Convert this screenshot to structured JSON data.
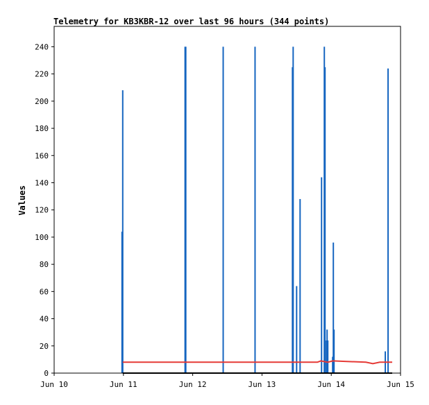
{
  "chart_data": {
    "type": "bar",
    "title": "Telemetry for KB3KBR-12 over last 96 hours (344 points)",
    "ylabel": "Values",
    "xlabel": "",
    "ylim": [
      0,
      255
    ],
    "xlim": [
      10.0,
      15.0
    ],
    "y_ticks": [
      0,
      20,
      40,
      60,
      80,
      100,
      120,
      140,
      160,
      180,
      200,
      220,
      240
    ],
    "x_ticks": [
      {
        "value": 10,
        "label": "Jun 10"
      },
      {
        "value": 11,
        "label": "Jun 11"
      },
      {
        "value": 12,
        "label": "Jun 12"
      },
      {
        "value": 13,
        "label": "Jun 13"
      },
      {
        "value": 14,
        "label": "Jun 14"
      },
      {
        "value": 15,
        "label": "Jun 15"
      }
    ],
    "grid": false,
    "legend": "none",
    "series": [
      {
        "color": "#1565c0",
        "style": "spikes",
        "points": [
          {
            "x": 10.98,
            "y": 104
          },
          {
            "x": 10.99,
            "y": 208
          },
          {
            "x": 11.89,
            "y": 240
          },
          {
            "x": 11.9,
            "y": 240
          },
          {
            "x": 12.44,
            "y": 240
          },
          {
            "x": 12.9,
            "y": 240
          },
          {
            "x": 13.44,
            "y": 225
          },
          {
            "x": 13.45,
            "y": 240
          },
          {
            "x": 13.5,
            "y": 64
          },
          {
            "x": 13.55,
            "y": 128
          },
          {
            "x": 13.86,
            "y": 144
          },
          {
            "x": 13.9,
            "y": 240
          },
          {
            "x": 13.91,
            "y": 225
          },
          {
            "x": 13.93,
            "y": 24
          },
          {
            "x": 13.94,
            "y": 32
          },
          {
            "x": 13.95,
            "y": 24
          },
          {
            "x": 14.02,
            "y": 12
          },
          {
            "x": 14.03,
            "y": 96
          },
          {
            "x": 14.04,
            "y": 32
          },
          {
            "x": 14.78,
            "y": 16
          },
          {
            "x": 14.82,
            "y": 224
          }
        ]
      },
      {
        "color": "#e53935",
        "style": "line",
        "points": [
          {
            "x": 10.99,
            "y": 8
          },
          {
            "x": 13.8,
            "y": 8
          },
          {
            "x": 13.85,
            "y": 9
          },
          {
            "x": 13.95,
            "y": 8
          },
          {
            "x": 14.02,
            "y": 9
          },
          {
            "x": 14.5,
            "y": 8
          },
          {
            "x": 14.6,
            "y": 7
          },
          {
            "x": 14.7,
            "y": 8
          },
          {
            "x": 14.88,
            "y": 8
          }
        ]
      },
      {
        "color": "#000000",
        "style": "line",
        "points": [
          {
            "x": 10.99,
            "y": 0
          },
          {
            "x": 14.88,
            "y": 0
          }
        ]
      }
    ]
  }
}
